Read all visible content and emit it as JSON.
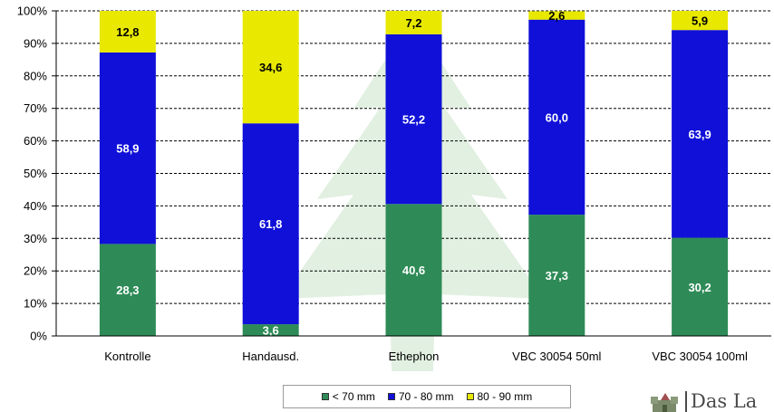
{
  "chart_data": {
    "type": "bar",
    "stacked": true,
    "percent_stacked": true,
    "categories": [
      "Kontrolle",
      "Handausd.",
      "Ethephon",
      "VBC 30054 50ml",
      "VBC 30054 100ml"
    ],
    "series": [
      {
        "name": "< 70 mm",
        "color": "#2e8b57",
        "values": [
          28.3,
          3.6,
          40.6,
          37.3,
          30.2
        ],
        "labels": [
          "28,3",
          "3,6",
          "40,6",
          "37,3",
          "30,2"
        ]
      },
      {
        "name": "70 - 80 mm",
        "color": "#1010d8",
        "values": [
          58.9,
          61.8,
          52.2,
          60.0,
          63.9
        ],
        "labels": [
          "58,9",
          "61,8",
          "52,2",
          "60,0",
          "63,9"
        ]
      },
      {
        "name": "80 - 90 mm",
        "color": "#e8e800",
        "values": [
          12.8,
          34.6,
          7.2,
          2.6,
          5.9
        ],
        "labels": [
          "12,8",
          "34,6",
          "7,2",
          "2,6",
          "5,9"
        ]
      }
    ],
    "yticks": [
      "0%",
      "10%",
      "20%",
      "30%",
      "40%",
      "50%",
      "60%",
      "70%",
      "80%",
      "90%",
      "100%"
    ],
    "ylim": [
      0,
      100
    ],
    "grid": true,
    "legend_position": "bottom"
  },
  "logo": {
    "text": "Das La"
  }
}
